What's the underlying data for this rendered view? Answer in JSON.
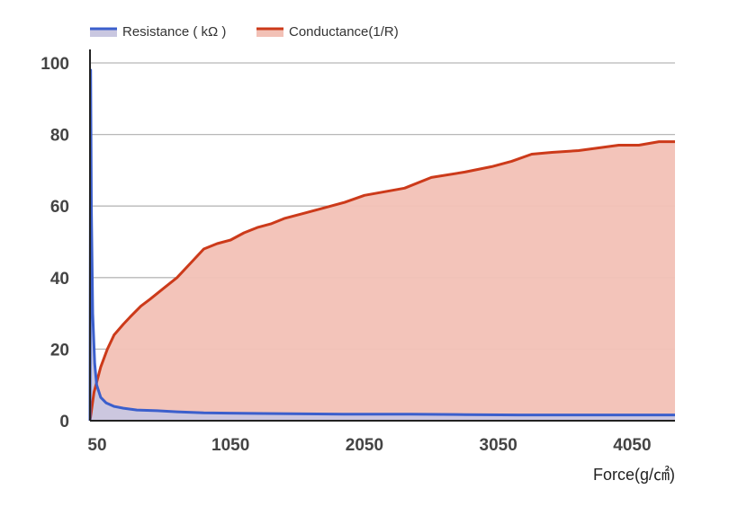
{
  "chart_data": {
    "type": "area",
    "xlabel": "Force(g/㎠)",
    "ylabel": "",
    "xlim": [
      0,
      4370
    ],
    "ylim": [
      0,
      100
    ],
    "x_ticks": [
      50,
      1050,
      2050,
      3050,
      4050
    ],
    "y_ticks": [
      0,
      20,
      40,
      60,
      80,
      100
    ],
    "grid": true,
    "legend": "top-left",
    "series": [
      {
        "name": "Resistance ( kΩ )",
        "color": "#3b5fcc",
        "fill": "#c9c7e0",
        "x": [
          0,
          5,
          10,
          20,
          35,
          50,
          80,
          120,
          180,
          250,
          350,
          500,
          650,
          850,
          1050,
          1300,
          1600,
          2000,
          2400,
          2800,
          3200,
          3600,
          4000,
          4370
        ],
        "y": [
          0,
          98,
          60,
          30,
          16,
          10,
          6.5,
          5,
          4,
          3.5,
          3,
          2.8,
          2.5,
          2.2,
          2.1,
          2,
          1.9,
          1.8,
          1.8,
          1.7,
          1.6,
          1.6,
          1.6,
          1.6
        ]
      },
      {
        "name": "Conductance(1/R)",
        "color": "#cc3a1a",
        "fill": "#f2c1b6",
        "x": [
          0,
          30,
          80,
          130,
          180,
          250,
          300,
          380,
          450,
          550,
          650,
          750,
          850,
          950,
          1050,
          1150,
          1250,
          1350,
          1450,
          1600,
          1750,
          1900,
          2050,
          2200,
          2350,
          2550,
          2800,
          3000,
          3150,
          3300,
          3450,
          3650,
          3850,
          3950,
          4100,
          4250,
          4370
        ],
        "y": [
          0,
          8,
          15,
          20,
          24,
          27,
          29,
          32,
          34,
          37,
          40,
          44,
          48,
          49.5,
          50.5,
          52.5,
          54,
          55,
          56.5,
          58,
          59.5,
          61,
          63,
          64,
          65,
          68,
          69.5,
          71,
          72.5,
          74.5,
          75,
          75.5,
          76.5,
          77,
          77,
          78,
          78
        ]
      }
    ]
  }
}
